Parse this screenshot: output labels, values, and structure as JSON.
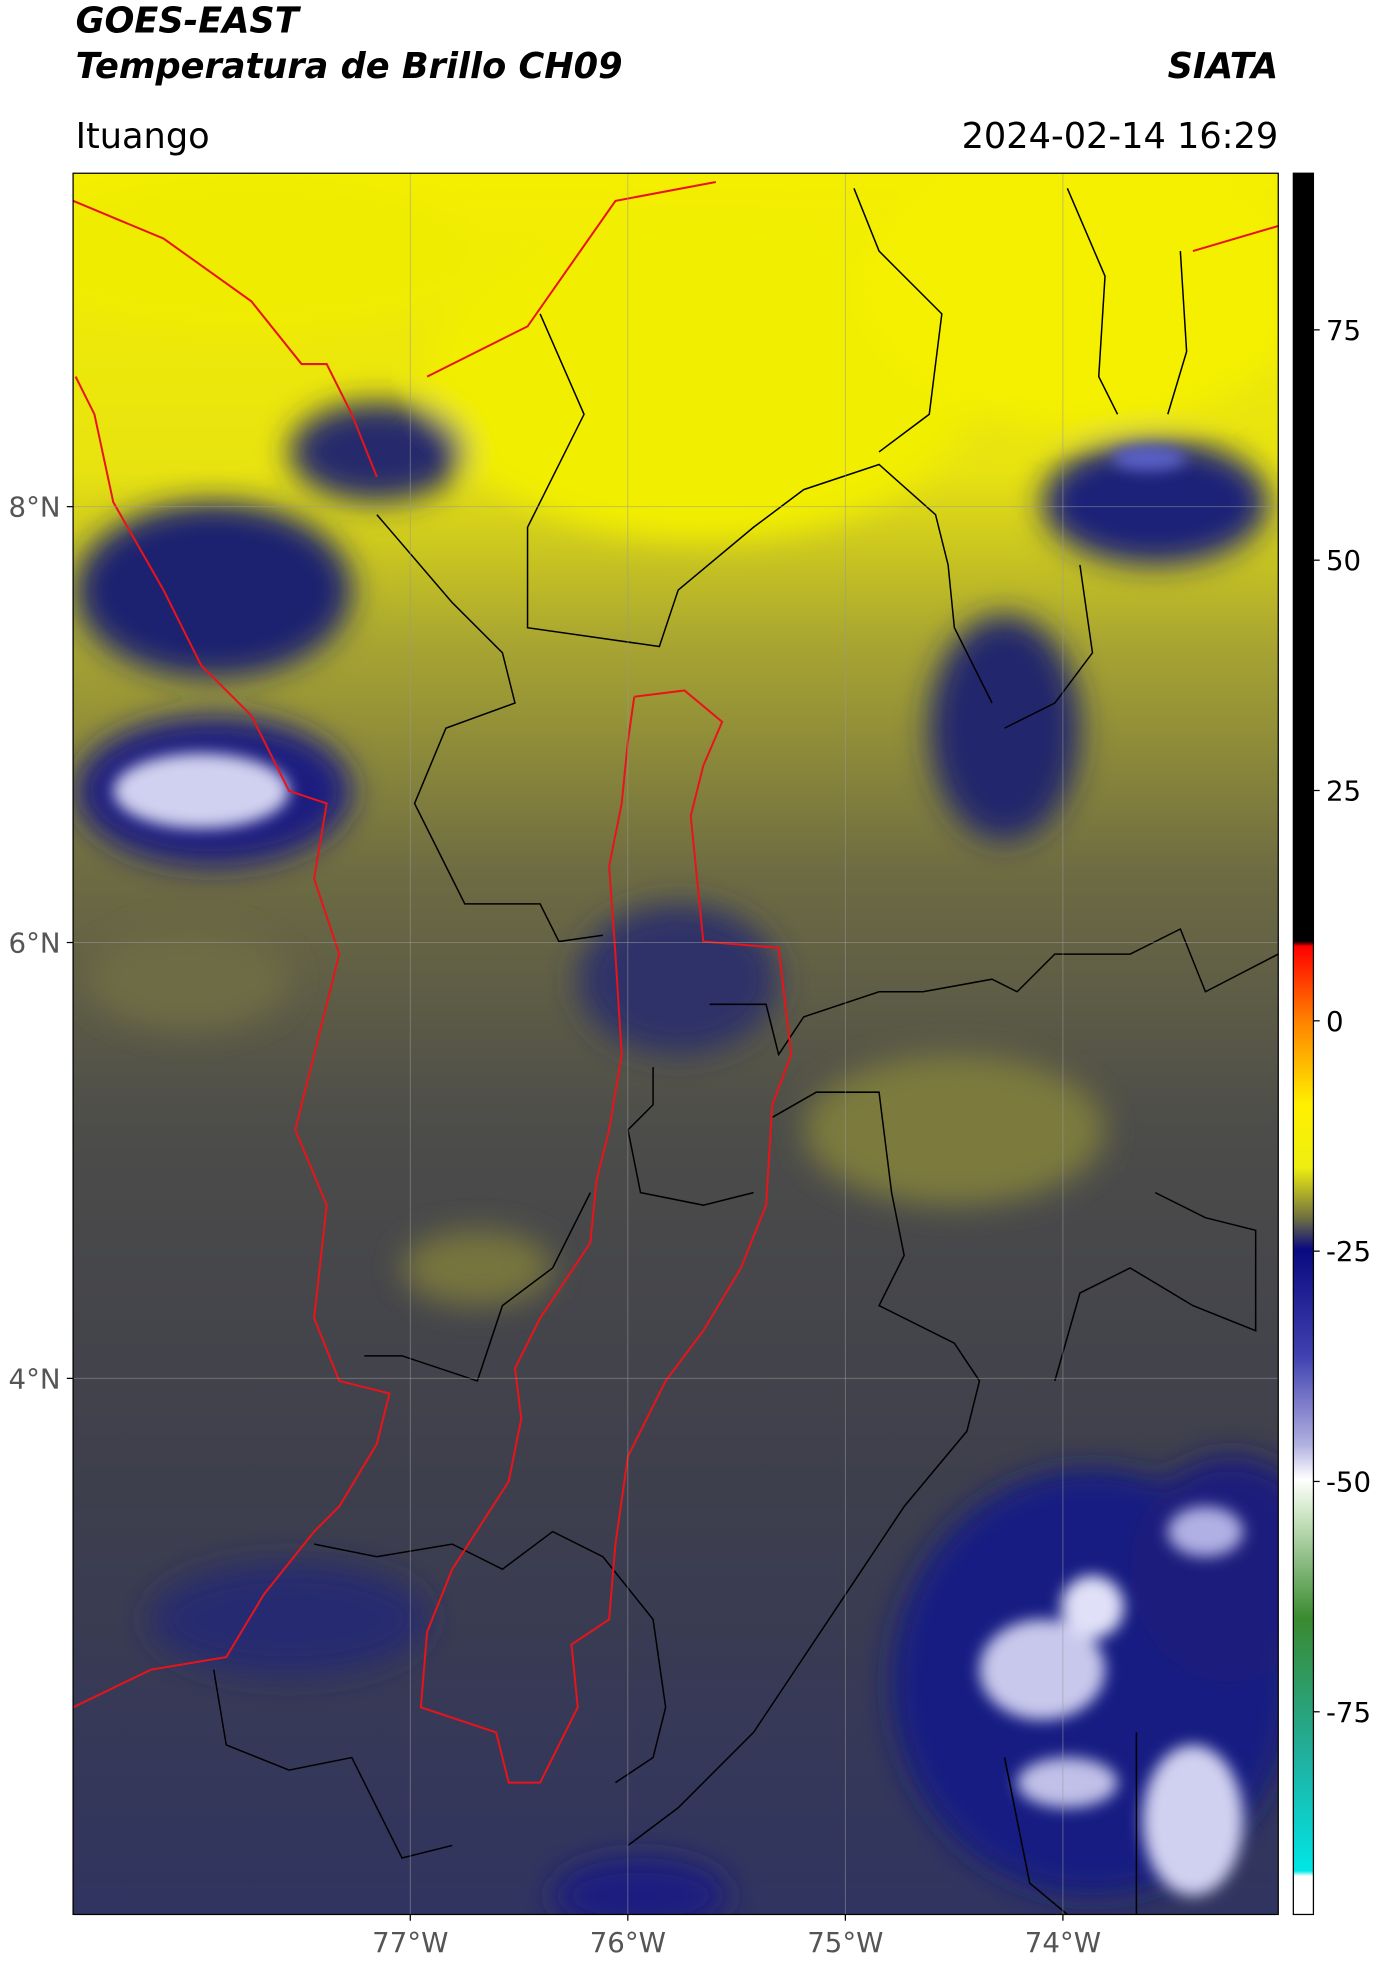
{
  "header": {
    "title": "GOES-EAST",
    "subtitle": "Temperatura de Brillo CH09",
    "institution": "SIATA",
    "location": "Ituango",
    "datetime": "2024-02-14 16:29"
  },
  "map": {
    "xlim": [
      -78.55,
      -73.01
    ],
    "ylim": [
      1.54,
      9.53
    ],
    "xticks": [
      {
        "value": -77,
        "label": "77°W"
      },
      {
        "value": -76,
        "label": "76°W"
      },
      {
        "value": -75,
        "label": "75°W"
      },
      {
        "value": -74,
        "label": "74°W"
      }
    ],
    "yticks": [
      {
        "value": 4,
        "label": "4°N"
      },
      {
        "value": 6,
        "label": "6°N"
      },
      {
        "value": 8,
        "label": "8°N"
      }
    ],
    "grid": true
  },
  "colorbar": {
    "lim": [
      -97,
      92
    ],
    "ticks": [
      -75,
      -50,
      -25,
      0,
      25,
      50,
      75
    ]
  }
}
